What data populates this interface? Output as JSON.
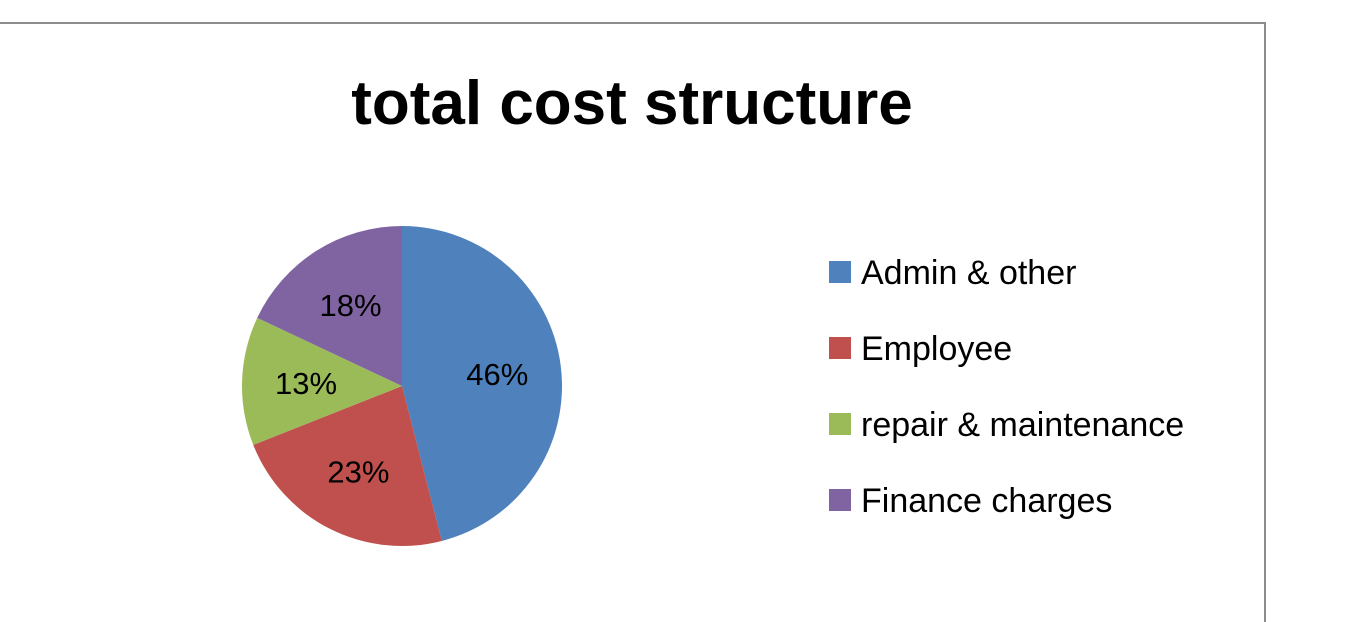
{
  "chart_data": {
    "type": "pie",
    "title": "total cost structure",
    "categories": [
      "Admin & other",
      "Employee",
      "repair & maintenance",
      "Finance charges"
    ],
    "values": [
      46,
      23,
      13,
      18
    ],
    "data_labels": [
      "46%",
      "23%",
      "13%",
      "18%"
    ],
    "colors": [
      "#4f81bd",
      "#c0504d",
      "#9bbb59",
      "#8064a2"
    ],
    "legend": {
      "position": "right",
      "entries": [
        "Admin & other",
        "Employee",
        "repair & maintenance",
        "Finance charges"
      ]
    }
  }
}
